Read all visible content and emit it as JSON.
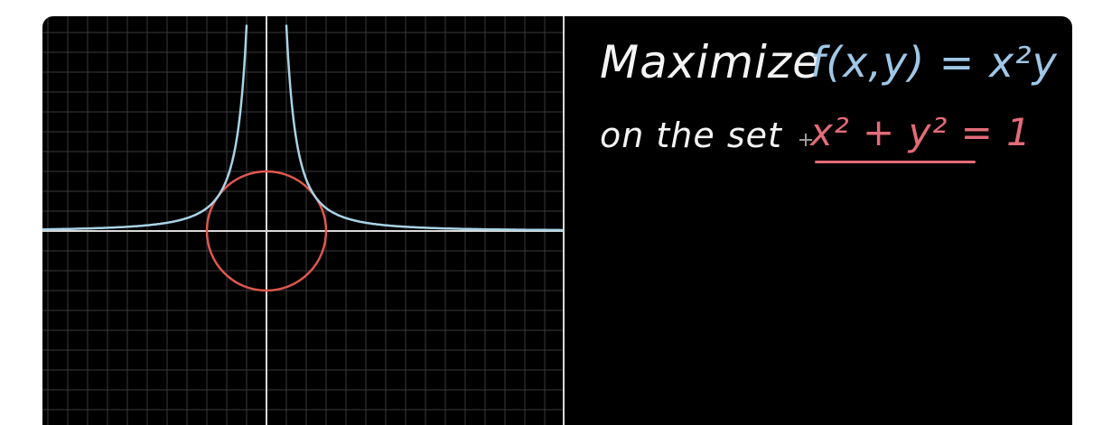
{
  "text": {
    "line1_word": "Maximize",
    "line1_func": "f(x,y) = x²y",
    "line2_word": "on the set",
    "line2_eq": "x² + y² = 1"
  },
  "colors": {
    "background": "#000000",
    "grid": "#3a3a3a",
    "axes": "#d9d9d9",
    "function_curve": "#a9d3e6",
    "constraint_circle": "#e0584f",
    "white_text": "#f4f4f4",
    "blue_text": "#9fc7e6",
    "pink_text": "#e36b78"
  },
  "icons": {
    "cursor": "crosshair-cursor-icon"
  }
}
